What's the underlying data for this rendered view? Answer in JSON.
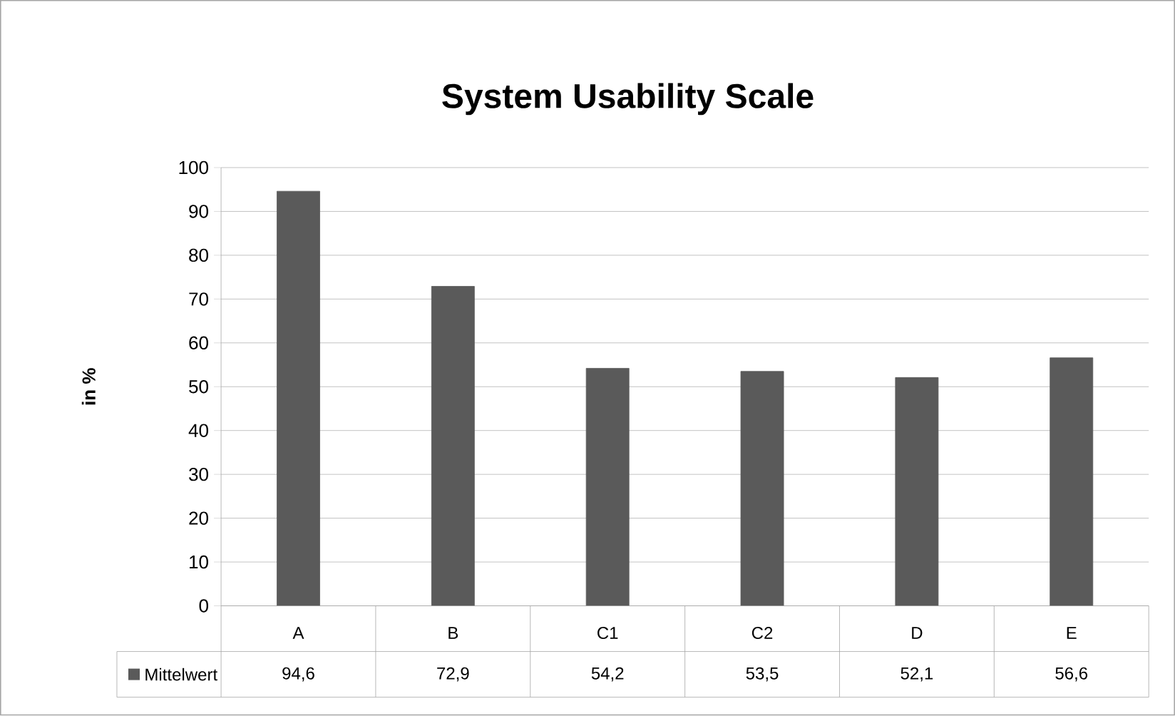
{
  "chart_data": {
    "type": "bar",
    "title": "System Usability Scale",
    "ylabel": "in %",
    "categories": [
      "A",
      "B",
      "C1",
      "C2",
      "D",
      "E"
    ],
    "series": [
      {
        "name": "Mittelwert",
        "color": "#5a5a5a",
        "values": [
          94.6,
          72.9,
          54.2,
          53.5,
          52.1,
          56.6
        ],
        "value_labels": [
          "94,6",
          "72,9",
          "54,2",
          "53,5",
          "52,1",
          "56,6"
        ]
      }
    ],
    "ylim": [
      0,
      100
    ],
    "yticks": [
      0,
      10,
      20,
      30,
      40,
      50,
      60,
      70,
      80,
      90,
      100
    ],
    "grid": "y",
    "legend": "bottom"
  }
}
